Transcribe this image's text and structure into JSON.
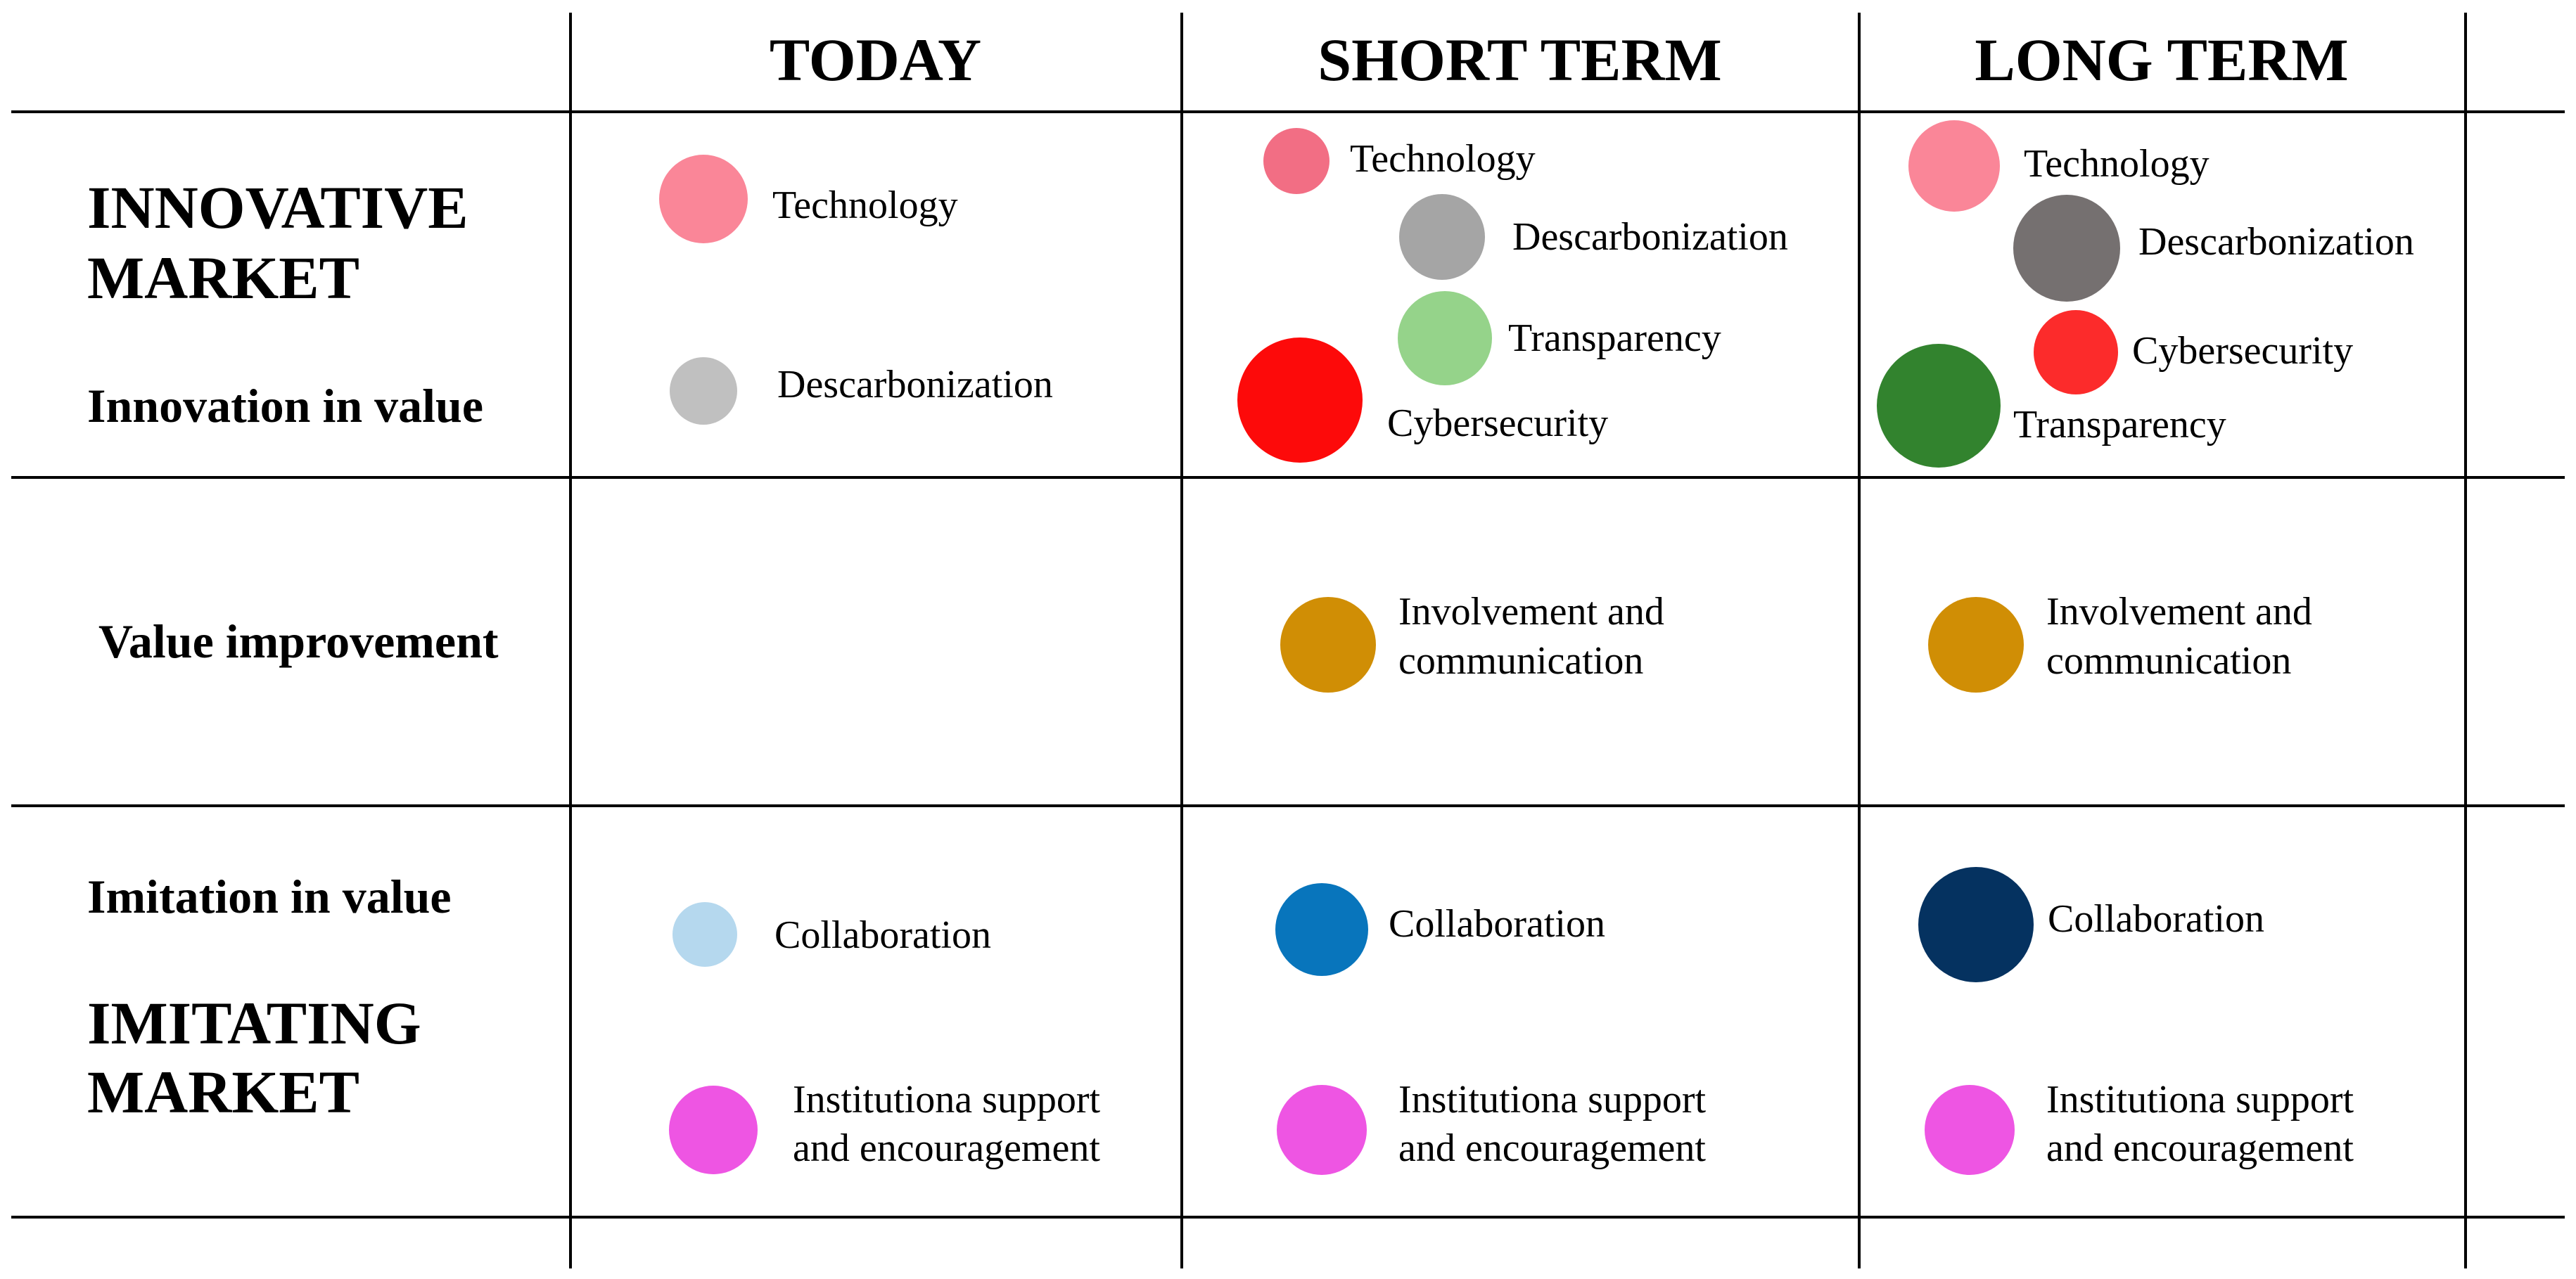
{
  "headers": {
    "today": "TODAY",
    "short_term": "SHORT TERM",
    "long_term": "LONG TERM"
  },
  "row_labels": {
    "innovative_market_1": "INNOVATIVE",
    "innovative_market_2": "MARKET",
    "innovation_in_value": "Innovation in value",
    "value_improvement": "Value improvement",
    "imitation_in_value": "Imitation in value",
    "imitating_market_1": "IMITATING",
    "imitating_market_2": "MARKET"
  },
  "items": {
    "today_technology": {
      "label": "Technology",
      "color": "#FA8698"
    },
    "today_descarbonization": {
      "label": "Descarbonization",
      "color": "#C0C0C0"
    },
    "today_collaboration": {
      "label": "Collaboration",
      "color": "#B5D8EE"
    },
    "today_institutional": {
      "label_1": "Institutiona support",
      "label_2": "and encouragement",
      "color": "#EE55E3"
    },
    "short_technology": {
      "label": "Technology",
      "color": "#F26E84"
    },
    "short_descarbonization": {
      "label": "Descarbonization",
      "color": "#A5A5A5"
    },
    "short_transparency": {
      "label": "Transparency",
      "color": "#95D38A"
    },
    "short_cybersecurity": {
      "label": "Cybersecurity",
      "color": "#FD0A0A"
    },
    "short_involvement": {
      "label_1": "Involvement and",
      "label_2": "communication",
      "color": "#D08E05"
    },
    "short_collaboration": {
      "label": "Collaboration",
      "color": "#0875BC"
    },
    "short_institutional": {
      "label_1": "Institutiona support",
      "label_2": "and encouragement",
      "color": "#EE55E3"
    },
    "long_technology": {
      "label": "Technology",
      "color": "#FA8698"
    },
    "long_descarbonization": {
      "label": "Descarbonization",
      "color": "#757070"
    },
    "long_cybersecurity": {
      "label": "Cybersecurity",
      "color": "#FC2B2B"
    },
    "long_transparency": {
      "label": "Transparency",
      "color": "#32832E"
    },
    "long_involvement": {
      "label_1": "Involvement and",
      "label_2": "communication",
      "color": "#D08E05"
    },
    "long_collaboration": {
      "label": "Collaboration",
      "color": "#053260"
    },
    "long_institutional": {
      "label_1": "Institutiona support",
      "label_2": "and encouragement",
      "color": "#EE55E3"
    }
  }
}
